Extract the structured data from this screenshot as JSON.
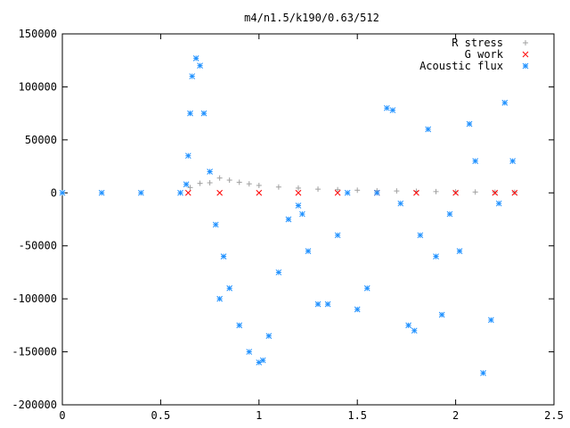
{
  "chart_data": {
    "type": "scatter",
    "title": "m4/n1.5/k190/0.63/512",
    "xlabel": "",
    "ylabel": "",
    "xlim": [
      0,
      2.5
    ],
    "ylim": [
      -200000,
      150000
    ],
    "x_ticks": [
      "0",
      "0.5",
      "1",
      "1.5",
      "2",
      "2.5"
    ],
    "x_tick_values": [
      0,
      0.5,
      1,
      1.5,
      2,
      2.5
    ],
    "y_ticks": [
      "150000",
      "100000",
      "50000",
      "0",
      "-50000",
      "-100000",
      "-150000",
      "-200000"
    ],
    "y_tick_values": [
      150000,
      100000,
      50000,
      0,
      -50000,
      -100000,
      -150000,
      -200000
    ],
    "legend_position": "top-right",
    "series": [
      {
        "name": "R stress",
        "marker": "plus",
        "color": "#a0a0a0",
        "x": [
          0.65,
          0.7,
          0.75,
          0.8,
          0.85,
          0.9,
          0.95,
          1.0,
          1.1,
          1.2,
          1.3,
          1.4,
          1.5,
          1.6,
          1.7,
          1.8,
          1.9,
          2.0,
          2.1,
          2.2,
          2.3
        ],
        "y": [
          5000,
          9000,
          9500,
          14000,
          12000,
          10000,
          8500,
          7000,
          5500,
          4500,
          3500,
          3000,
          2500,
          2000,
          1800,
          1500,
          1200,
          1000,
          800,
          600,
          500
        ]
      },
      {
        "name": "G work",
        "marker": "cross",
        "color": "#ff0000",
        "x": [
          0.64,
          0.8,
          1.0,
          1.2,
          1.4,
          1.6,
          1.8,
          2.0,
          2.2,
          2.3
        ],
        "y": [
          0,
          0,
          0,
          0,
          0,
          0,
          0,
          0,
          0,
          0
        ]
      },
      {
        "name": "Acoustic flux",
        "marker": "star",
        "color": "#1e90ff",
        "x": [
          0.0,
          0.2,
          0.4,
          0.6,
          0.63,
          0.64,
          0.65,
          0.66,
          0.68,
          0.7,
          0.72,
          0.75,
          0.78,
          0.8,
          0.82,
          0.85,
          0.9,
          0.95,
          1.0,
          1.02,
          1.05,
          1.1,
          1.15,
          1.2,
          1.22,
          1.25,
          1.3,
          1.35,
          1.4,
          1.45,
          1.5,
          1.55,
          1.6,
          1.65,
          1.68,
          1.72,
          1.76,
          1.79,
          1.82,
          1.86,
          1.9,
          1.93,
          1.97,
          2.02,
          2.07,
          2.1,
          2.14,
          2.18,
          2.22,
          2.25,
          2.29
        ],
        "y": [
          0,
          0,
          0,
          0,
          8000,
          35000,
          75000,
          110000,
          127000,
          120000,
          75000,
          20000,
          -30000,
          -100000,
          -60000,
          -90000,
          -125000,
          -150000,
          -160000,
          -158000,
          -135000,
          -75000,
          -25000,
          -12000,
          -20000,
          -55000,
          -105000,
          -105000,
          -40000,
          0,
          -110000,
          -90000,
          0,
          80000,
          78000,
          -10000,
          -125000,
          -130000,
          -40000,
          60000,
          -60000,
          -115000,
          -20000,
          -55000,
          65000,
          30000,
          -170000,
          -120000,
          -10000,
          85000,
          30000
        ]
      }
    ]
  }
}
